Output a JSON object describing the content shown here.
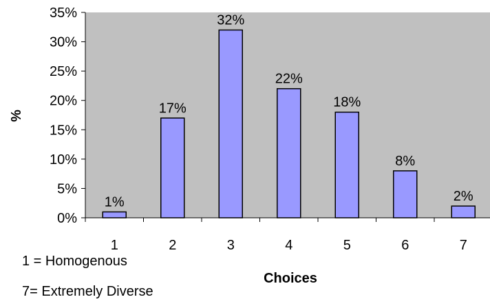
{
  "chart_data": {
    "type": "bar",
    "categories": [
      "1",
      "2",
      "3",
      "4",
      "5",
      "6",
      "7"
    ],
    "values": [
      1,
      17,
      32,
      22,
      18,
      8,
      2
    ],
    "data_labels": [
      "1%",
      "17%",
      "32%",
      "22%",
      "18%",
      "8%",
      "2%"
    ],
    "xlabel": "Choices",
    "ylabel": "%",
    "ylim": [
      0,
      35
    ],
    "yticks": [
      0,
      5,
      10,
      15,
      20,
      25,
      30,
      35
    ],
    "ytick_labels": [
      "0%",
      "5%",
      "10%",
      "15%",
      "20%",
      "25%",
      "30%",
      "35%"
    ],
    "grid": false,
    "plot_background": "#c0c0c0",
    "bar_color": "#9999ff",
    "bar_edge": "#000000"
  },
  "notes": {
    "low": "1 = Homogenous",
    "high": "7= Extremely Diverse"
  }
}
